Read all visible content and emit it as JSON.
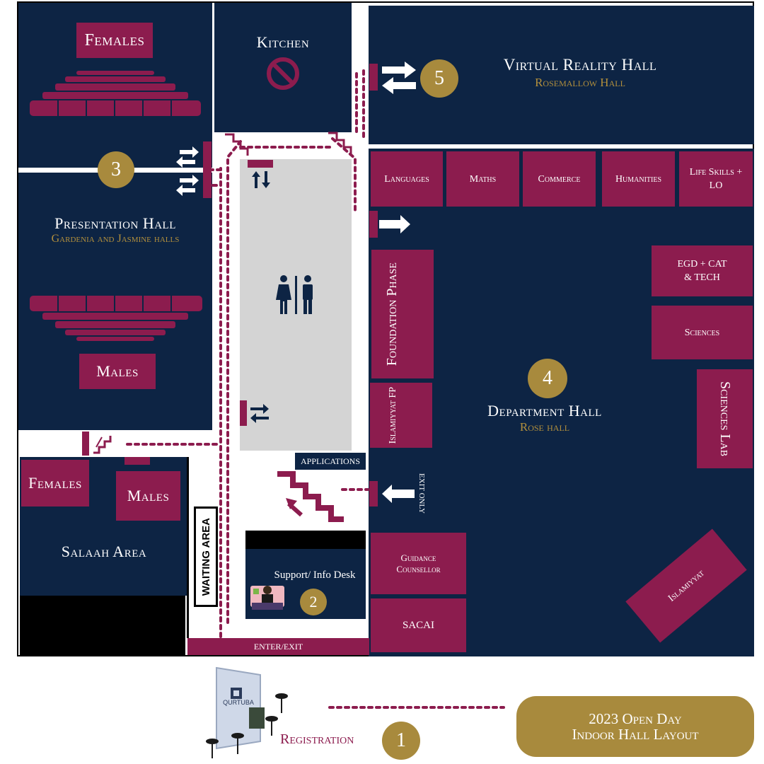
{
  "colors": {
    "navy": "#0d2444",
    "maroon": "#8c1c4e",
    "gold": "#a88a3d",
    "grey": "#d4d4d4"
  },
  "rooms": {
    "kitchen": "Kitchen",
    "kitchen_icon": "no-entry-icon",
    "vr_hall": "Virtual Reality Hall",
    "vr_hall_sub": "Rosemallow Hall",
    "presentation_hall": "Presentation Hall",
    "presentation_hall_sub": "Gardenia and Jasmine halls",
    "females_top": "Females",
    "males_presentation": "Males",
    "department_hall": "Department Hall",
    "department_hall_sub": "Rose hall",
    "salaah_area": "Salaah Area",
    "salaah_females": "Females",
    "salaah_males": "Males",
    "waiting_area": "WAITING AREA",
    "support_desk": "Support/ Info Desk",
    "applications": "APPLICATIONS",
    "enter_exit": "ENTER/EXIT",
    "exit_only": "EXIT ONLY",
    "registration": "Registration",
    "toilets_icon": "toilets-icon"
  },
  "departments": {
    "languages": "Languages",
    "maths": "Maths",
    "commerce": "Commerce",
    "humanities": "Humanities",
    "life_skills": "Life Skills + LO",
    "egd": "EGD + CAT & TECH",
    "sciences": "Sciences",
    "sciences_lab": "Sciences Lab",
    "foundation_phase": "Foundation Phase",
    "islamiyyat_fp": "Islamiyyat FP",
    "guidance": "Guidance Counsellor",
    "sacai": "SACAI",
    "islamiyyat": "Islamiyyat"
  },
  "markers": [
    "1",
    "2",
    "3",
    "4",
    "5"
  ],
  "logo": "QURTUBA",
  "title": {
    "line1": "2023 Open Day",
    "line2": "Indoor Hall Layout"
  }
}
